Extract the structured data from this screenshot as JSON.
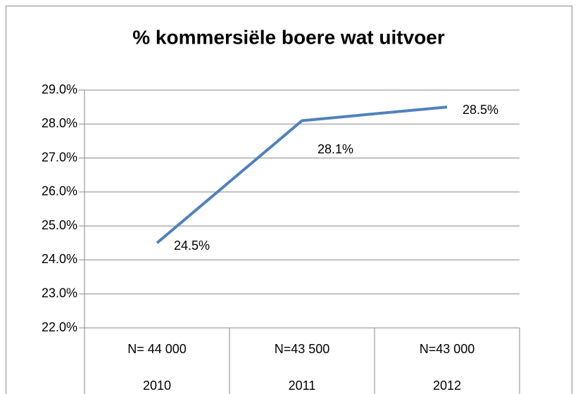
{
  "chart_data": {
    "type": "line",
    "title": "% kommersiële boere wat uitvoer",
    "categories": [
      "2010",
      "2011",
      "2012"
    ],
    "sample_sizes": [
      "N= 44 000",
      "N=43 500",
      "N=43 000"
    ],
    "series": [
      {
        "name": "% kommersiële boere wat uitvoer",
        "color": "#4f81bd",
        "values": [
          24.5,
          28.1,
          28.5
        ],
        "value_labels": [
          "24.5%",
          "28.1%",
          "28.5%"
        ]
      }
    ],
    "ylim": [
      22,
      29
    ],
    "yticks": [
      {
        "value": 22,
        "label": "22.0%"
      },
      {
        "value": 23,
        "label": "23.0%"
      },
      {
        "value": 24,
        "label": "24.0%"
      },
      {
        "value": 25,
        "label": "25.0%"
      },
      {
        "value": 26,
        "label": "26.0%"
      },
      {
        "value": 27,
        "label": "27.0%"
      },
      {
        "value": 28,
        "label": "28.0%"
      },
      {
        "value": 29,
        "label": "29.0%"
      }
    ],
    "grid": true
  }
}
